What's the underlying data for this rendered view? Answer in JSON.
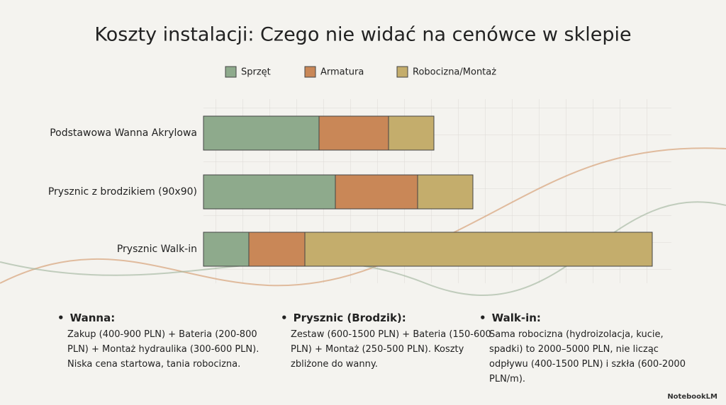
{
  "chart_data": {
    "type": "bar",
    "orientation": "horizontal",
    "stacked": true,
    "title": "Koszty instalacji: Czego nie widać na cenówce w sklepie",
    "categories": [
      "Podstawowa Wanna Akrylowa",
      "Prysznic z brodzikiem (90x90)",
      "Prysznic Walk-in"
    ],
    "series": [
      {
        "name": "Sprzęt",
        "color": "#8eaa8c",
        "values": [
          163,
          186,
          64
        ]
      },
      {
        "name": "Armatura",
        "color": "#c98757",
        "values": [
          98,
          116,
          79
        ]
      },
      {
        "name": "Robocizna/Montaż",
        "color": "#c4ad6c",
        "values": [
          64,
          78,
          490
        ]
      }
    ],
    "xlim": [
      0,
      653
    ]
  },
  "notes": [
    {
      "heading": "Wanna:",
      "body": "Zakup (400-900 PLN) + Bateria (200-800 PLN) + Montaż hydraulika (300-600 PLN). Niska cena startowa, tania robocizna."
    },
    {
      "heading": "Prysznic (Brodzik):",
      "body": "Zestaw (600-1500 PLN) + Bateria (150-600 PLN) + Montaż (250-500 PLN). Koszty zbliżone do wanny."
    },
    {
      "heading": "Walk-in:",
      "body": "Sama robocizna (hydroizolacja, kucie, spadki) to 2000–5000 PLN, nie licząc odpływu (400-1500 PLN) i szkła (600-2000 PLN/m)."
    }
  ],
  "brand": "NotebookLM"
}
